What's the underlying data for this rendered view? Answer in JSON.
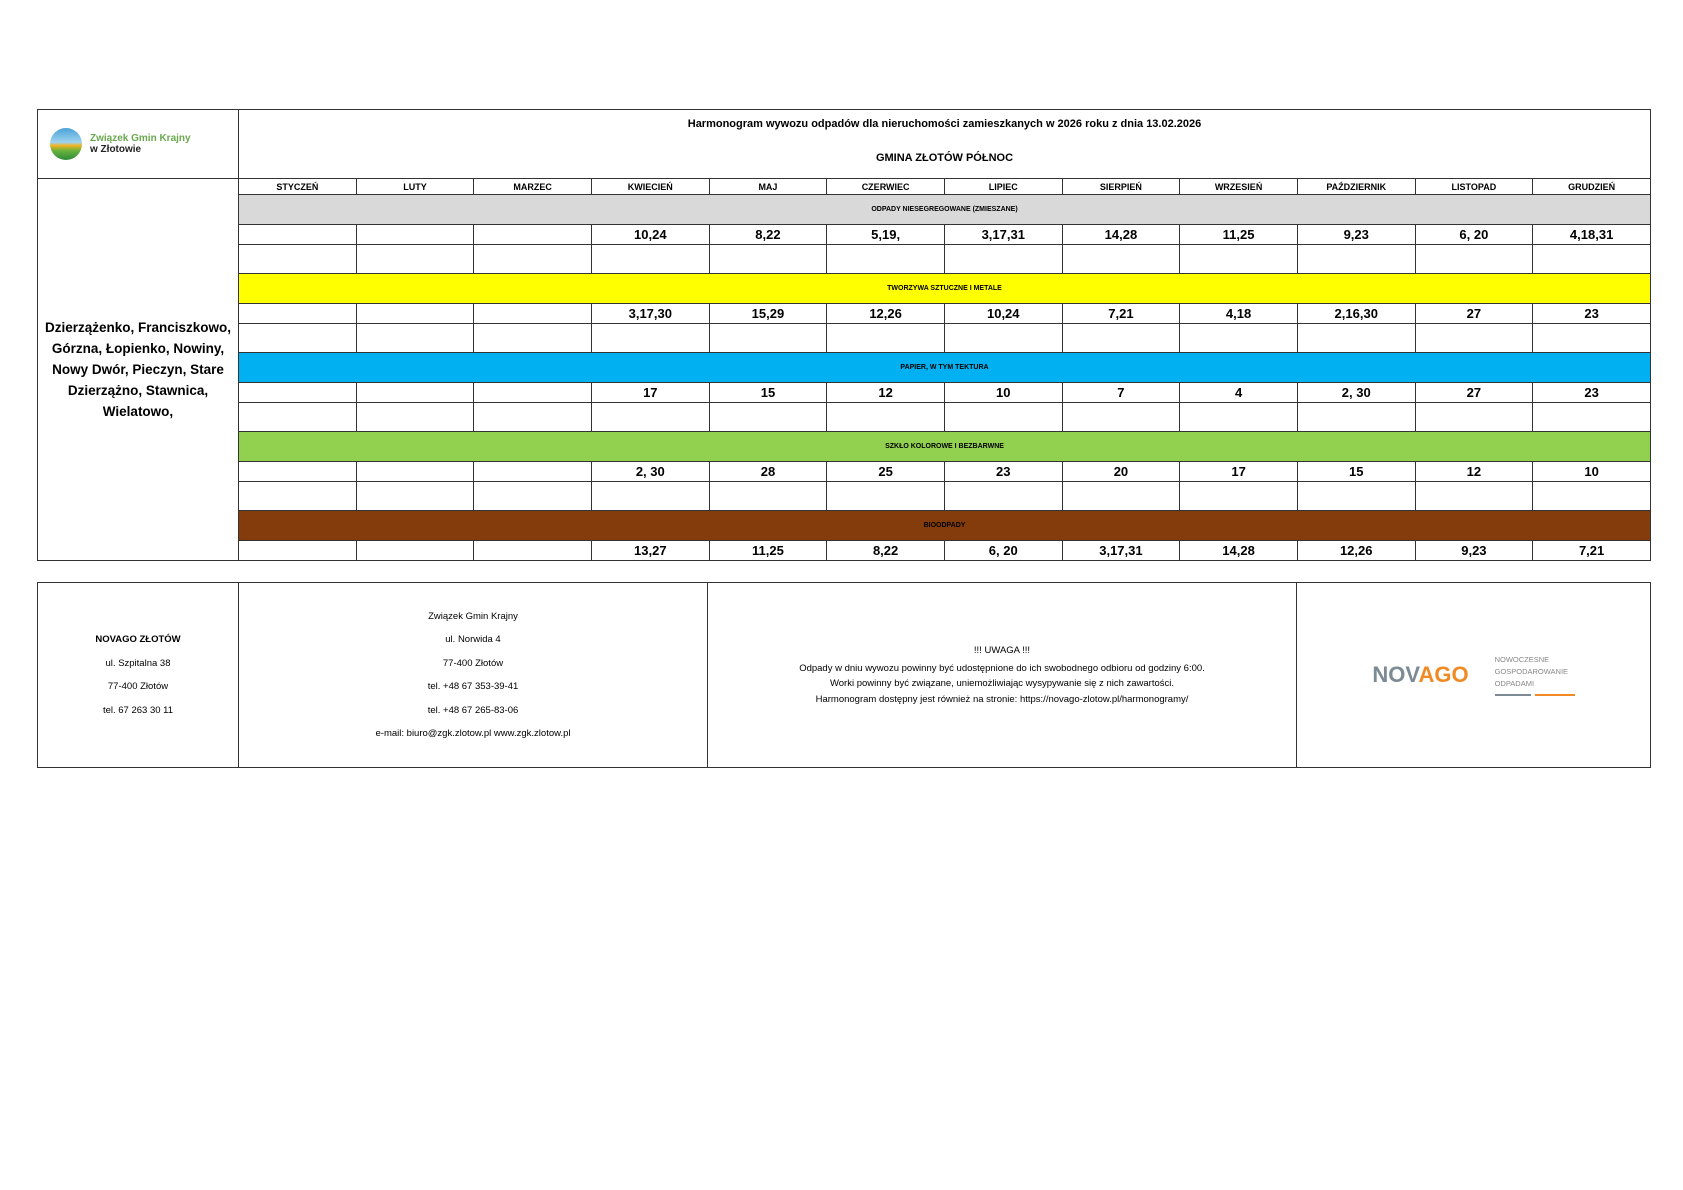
{
  "header": {
    "logo_text_line1": "Związek Gmin Krajny",
    "logo_text_line2": "w Złotowie",
    "title": "Harmonogram wywozu odpadów dla nieruchomości zamieszkanych w 2026 roku z dnia 13.02.2026",
    "subtitle": "GMINA ZŁOTÓW PÓŁNOC"
  },
  "location": "Dzierzążenko, Franciszkowo, Górzna, Łopienko, Nowiny, Nowy Dwór, Pieczyn,  Stare Dzierzążno, Stawnica, Wielatowo,",
  "months": [
    "STYCZEŃ",
    "LUTY",
    "MARZEC",
    "KWIECIEŃ",
    "MAJ",
    "CZERWIEC",
    "LIPIEC",
    "SIERPIEŃ",
    "WRZESIEŃ",
    "PAŹDZIERNIK",
    "LISTOPAD",
    "GRUDZIEŃ"
  ],
  "categories": [
    {
      "name": "ODPADY NIESEGREGOWANE (ZMIESZANE)",
      "color": "#d9d9d9",
      "dates": [
        "",
        "",
        "",
        "10,24",
        "8,22",
        "5,19,",
        "3,17,31",
        "14,28",
        "11,25",
        "9,23",
        "6, 20",
        "4,18,31"
      ],
      "empty_row": true
    },
    {
      "name": "TWORZYWA SZTUCZNE I METALE",
      "color": "#ffff00",
      "dates": [
        "",
        "",
        "",
        "3,17,30",
        "15,29",
        "12,26",
        "10,24",
        "7,21",
        "4,18",
        "2,16,30",
        "27",
        "23"
      ],
      "empty_row": true
    },
    {
      "name": "PAPIER, W TYM TEKTURA",
      "color": "#00b0f0",
      "dates": [
        "",
        "",
        "",
        "17",
        "15",
        "12",
        "10",
        "7",
        "4",
        "2, 30",
        "27",
        "23"
      ],
      "empty_row": true
    },
    {
      "name": "SZKŁO KOLOROWE I BEZBARWNE",
      "color": "#92d050",
      "dates": [
        "",
        "",
        "",
        "2, 30",
        "28",
        "25",
        "23",
        "20",
        "17",
        "15",
        "12",
        "10"
      ],
      "empty_row": true
    },
    {
      "name": "BIOODPADY",
      "color": "#843c0c",
      "dates": [
        "",
        "",
        "",
        "13,27",
        "11,25",
        "8,22",
        "6, 20",
        "3,17,31",
        "14,28",
        "12,26",
        "9,23",
        "7,21"
      ],
      "empty_row": false
    }
  ],
  "footer": {
    "operator": [
      "NOVAGO ZŁOTÓW",
      "ul. Szpitalna 38",
      "77-400 Złotów",
      "tel. 67 263 30 11"
    ],
    "union": [
      "Związek Gmin Krajny",
      "ul. Norwida 4",
      "77-400 Złotów",
      "tel. +48 67 353-39-41",
      "tel. +48 67 265-83-06",
      "e-mail: biuro@zgk.zlotow.pl www.zgk.zlotow.pl"
    ],
    "warning": [
      "!!! UWAGA !!!",
      "Odpady w dniu wywozu powinny być udostępnione do ich swobodnego odbioru od godziny 6:00.",
      "Worki powinny być związane, uniemożliwiając wysypywanie się z nich zawartości.",
      "Harmonogram dostępny jest również na stronie:  https://novago-zlotow.pl/harmonogramy/"
    ],
    "novago_logo": {
      "part1": "NOV",
      "part2": "AGO",
      "tagline": [
        "NOWOCZESNE",
        "GOSPODAROWANIE",
        "ODPADAMI"
      ],
      "color_gray": "#7b8a93",
      "color_orange": "#f08a24"
    }
  }
}
